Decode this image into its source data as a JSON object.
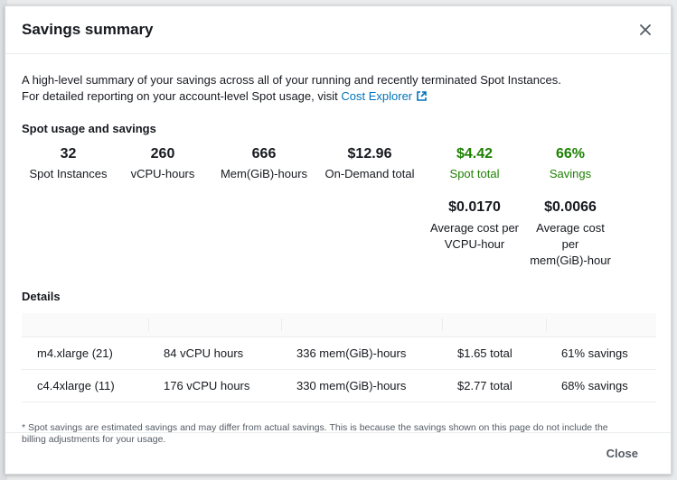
{
  "modal": {
    "title": "Savings summary",
    "intro_line1": "A high-level summary of your savings across all of your running and recently terminated Spot Instances.",
    "intro_line2_prefix": "For detailed reporting on your account-level Spot usage, visit ",
    "intro_link": "Cost Explorer",
    "usage_heading": "Spot usage and savings",
    "stats": [
      {
        "value": "32",
        "label": "Spot Instances"
      },
      {
        "value": "260",
        "label": "vCPU-hours"
      },
      {
        "value": "666",
        "label": "Mem(GiB)-hours"
      },
      {
        "value": "$12.96",
        "label": "On-Demand total"
      },
      {
        "value": "$4.42",
        "label": "Spot total"
      },
      {
        "value": "66%",
        "label": "Savings"
      }
    ],
    "averages": [
      {
        "value": "$0.0170",
        "label_line1": "Average cost per",
        "label_line2": "VCPU-hour"
      },
      {
        "value": "$0.0066",
        "label_line1": "Average cost per",
        "label_line2": "mem(GiB)-hour"
      }
    ],
    "details_heading": "Details",
    "details_rows": [
      {
        "type": "m4.xlarge (21)",
        "vcpu": "84 vCPU hours",
        "mem": "336 mem(GiB)-hours",
        "total": "$1.65 total",
        "savings": "61% savings"
      },
      {
        "type": "c4.4xlarge (11)",
        "vcpu": "176 vCPU hours",
        "mem": "330 mem(GiB)-hours",
        "total": "$2.77 total",
        "savings": "68% savings"
      }
    ],
    "footnote_line1": "* Spot savings are estimated savings and may differ from actual savings. This is because the savings shown on this page do not include the",
    "footnote_line2": "billing adjustments for your usage.",
    "close_label": "Close",
    "colors": {
      "accent_link": "#0073bb",
      "savings_green": "#1d8102"
    },
    "icons": {
      "close": "close-icon",
      "external_link": "external-link-icon"
    }
  }
}
